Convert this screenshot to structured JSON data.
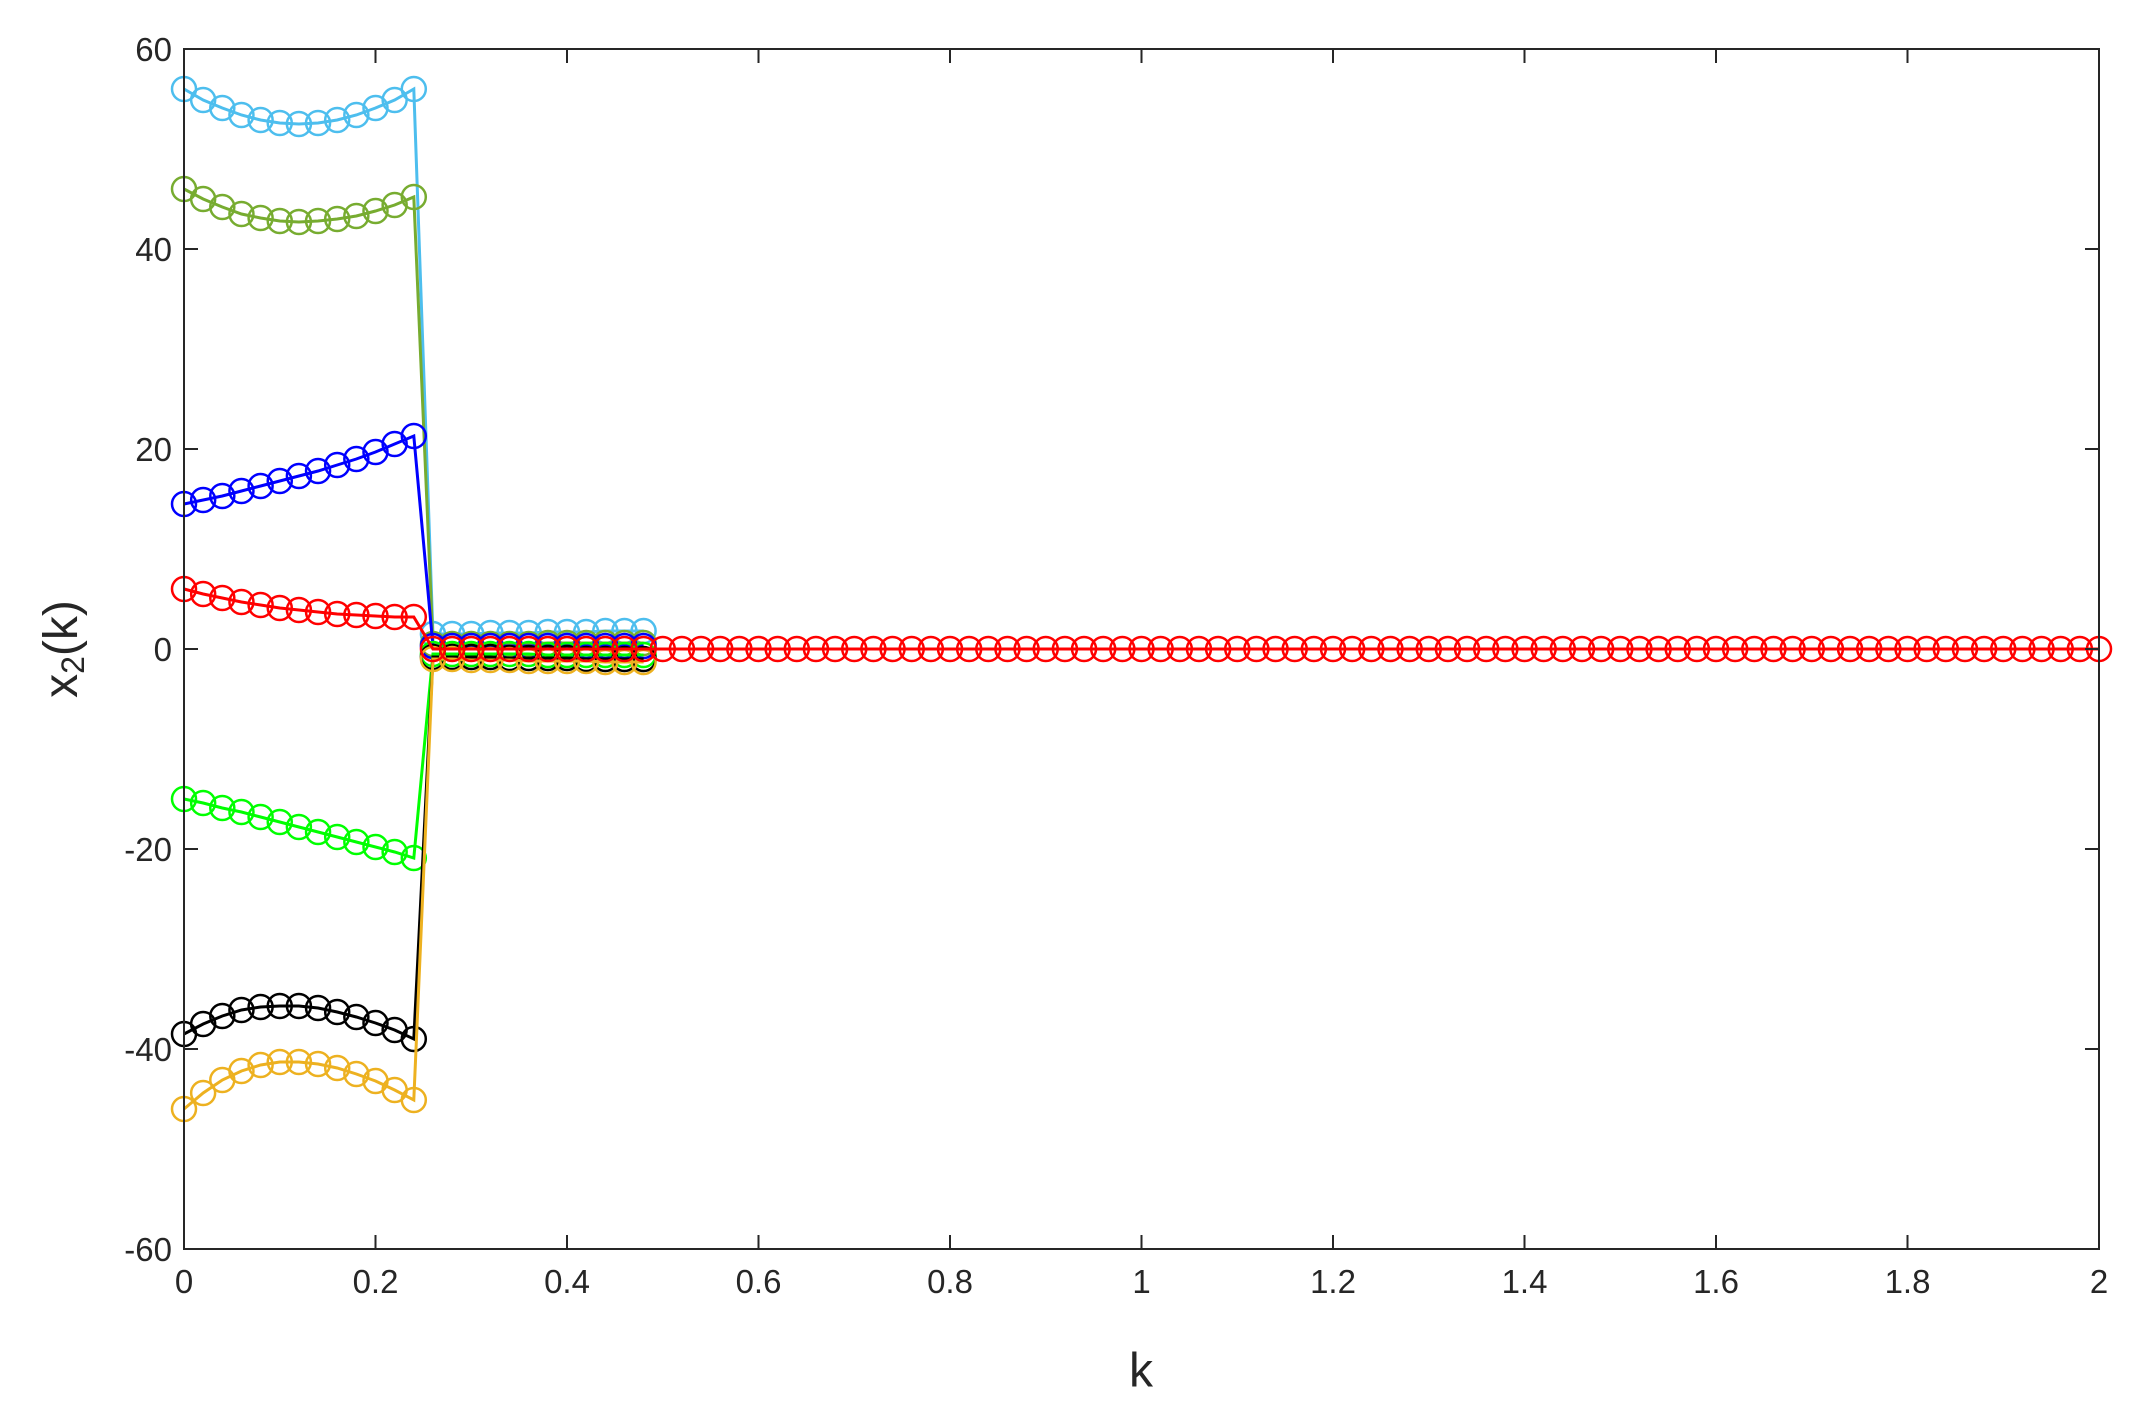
{
  "chart_data": {
    "type": "line",
    "xlabel": "k",
    "ylabel": [
      "x",
      "2",
      "(k)"
    ],
    "xlim": [
      0,
      2
    ],
    "xticks": [
      0,
      0.2,
      0.4,
      0.6,
      0.8,
      1,
      1.2,
      1.4,
      1.6,
      1.8,
      2
    ],
    "ylim": [
      -60,
      60
    ],
    "yticks": [
      -60,
      -40,
      -20,
      0,
      20,
      40,
      60
    ],
    "marker": "circle",
    "series": [
      {
        "color": "#4DBEEE",
        "x": [
          0,
          0.02,
          0.04,
          0.06,
          0.08,
          0.1,
          0.12,
          0.14,
          0.16,
          0.18,
          0.2,
          0.22,
          0.24,
          0.26,
          0.28,
          0.3,
          0.32,
          0.34,
          0.36,
          0.38,
          0.4,
          0.42,
          0.44,
          0.46,
          0.48
        ],
        "values": [
          56,
          54.9,
          54.1,
          53.4,
          52.9,
          52.6,
          52.5,
          52.6,
          52.9,
          53.4,
          54.1,
          54.9,
          56,
          1.5,
          1.5,
          1.5,
          1.6,
          1.6,
          1.6,
          1.7,
          1.7,
          1.7,
          1.8,
          1.8,
          1.8
        ]
      },
      {
        "color": "#77AC30",
        "x": [
          0,
          0.02,
          0.04,
          0.06,
          0.08,
          0.1,
          0.12,
          0.14,
          0.16,
          0.18,
          0.2,
          0.22,
          0.24,
          0.26,
          0.28,
          0.3,
          0.32,
          0.34,
          0.36,
          0.38,
          0.4,
          0.42,
          0.44,
          0.46,
          0.48
        ],
        "values": [
          46,
          45,
          44.2,
          43.5,
          43.1,
          42.8,
          42.7,
          42.8,
          43,
          43.3,
          43.8,
          44.4,
          45.2,
          0.5,
          0.5,
          0.5,
          0.5,
          0.5,
          0.5,
          0.6,
          0.6,
          0.6,
          0.6,
          0.6,
          0.6
        ]
      },
      {
        "color": "#0000FF",
        "x": [
          0,
          0.02,
          0.04,
          0.06,
          0.08,
          0.1,
          0.12,
          0.14,
          0.16,
          0.18,
          0.2,
          0.22,
          0.24,
          0.26,
          0.28,
          0.3,
          0.32,
          0.34,
          0.36,
          0.38,
          0.4,
          0.42,
          0.44,
          0.46,
          0.48
        ],
        "values": [
          14.5,
          14.9,
          15.3,
          15.8,
          16.3,
          16.8,
          17.3,
          17.8,
          18.4,
          19,
          19.7,
          20.5,
          21.3,
          0.3,
          0.3,
          0.3,
          0.3,
          0.3,
          0.3,
          0.3,
          0.3,
          0.3,
          0.3,
          0.3,
          0.3
        ]
      },
      {
        "color": "#00FF00",
        "x": [
          0,
          0.02,
          0.04,
          0.06,
          0.08,
          0.1,
          0.12,
          0.14,
          0.16,
          0.18,
          0.2,
          0.22,
          0.24,
          0.26,
          0.28,
          0.3,
          0.32,
          0.34,
          0.36,
          0.38,
          0.4,
          0.42,
          0.44,
          0.46,
          0.48
        ],
        "values": [
          -15,
          -15.4,
          -15.9,
          -16.3,
          -16.8,
          -17.3,
          -17.8,
          -18.3,
          -18.8,
          -19.3,
          -19.8,
          -20.3,
          -20.9,
          -0.5,
          -0.5,
          -0.5,
          -0.5,
          -0.5,
          -0.5,
          -0.6,
          -0.6,
          -0.6,
          -0.6,
          -0.6,
          -0.6
        ]
      },
      {
        "color": "#000000",
        "x": [
          0,
          0.02,
          0.04,
          0.06,
          0.08,
          0.1,
          0.12,
          0.14,
          0.16,
          0.18,
          0.2,
          0.22,
          0.24,
          0.26,
          0.28,
          0.3,
          0.32,
          0.34,
          0.36,
          0.38,
          0.4,
          0.42,
          0.44,
          0.46,
          0.48
        ],
        "values": [
          -38.5,
          -37.5,
          -36.7,
          -36.1,
          -35.8,
          -35.7,
          -35.7,
          -35.9,
          -36.3,
          -36.8,
          -37.4,
          -38.1,
          -39,
          -0.8,
          -0.8,
          -0.8,
          -0.8,
          -0.9,
          -0.9,
          -0.9,
          -0.9,
          -1,
          -1,
          -1,
          -1
        ]
      },
      {
        "color": "#EDB120",
        "x": [
          0,
          0.02,
          0.04,
          0.06,
          0.08,
          0.1,
          0.12,
          0.14,
          0.16,
          0.18,
          0.2,
          0.22,
          0.24,
          0.26,
          0.28,
          0.3,
          0.32,
          0.34,
          0.36,
          0.38,
          0.4,
          0.42,
          0.44,
          0.46,
          0.48
        ],
        "values": [
          -46,
          -44.4,
          -43.1,
          -42.2,
          -41.6,
          -41.3,
          -41.3,
          -41.5,
          -41.9,
          -42.5,
          -43.2,
          -44.1,
          -45.1,
          -1,
          -1,
          -1.1,
          -1.1,
          -1.1,
          -1.2,
          -1.2,
          -1.2,
          -1.2,
          -1.3,
          -1.3,
          -1.3
        ]
      },
      {
        "color": "#FF0000",
        "x": [
          0,
          0.02,
          0.04,
          0.06,
          0.08,
          0.1,
          0.12,
          0.14,
          0.16,
          0.18,
          0.2,
          0.22,
          0.24,
          0.26,
          0.28,
          0.3,
          0.32,
          0.34,
          0.36,
          0.38,
          0.4,
          0.42,
          0.44,
          0.46,
          0.48,
          0.5,
          0.52,
          0.54,
          0.56,
          0.58,
          0.6,
          0.62,
          0.64,
          0.66,
          0.68,
          0.7,
          0.72,
          0.74,
          0.76,
          0.78,
          0.8,
          0.82,
          0.84,
          0.86,
          0.88,
          0.9,
          0.92,
          0.94,
          0.96,
          0.98,
          1,
          1.02,
          1.04,
          1.06,
          1.08,
          1.1,
          1.12,
          1.14,
          1.16,
          1.18,
          1.2,
          1.22,
          1.24,
          1.26,
          1.28,
          1.3,
          1.32,
          1.34,
          1.36,
          1.38,
          1.4,
          1.42,
          1.44,
          1.46,
          1.48,
          1.5,
          1.52,
          1.54,
          1.56,
          1.58,
          1.6,
          1.62,
          1.64,
          1.66,
          1.68,
          1.7,
          1.72,
          1.74,
          1.76,
          1.78,
          1.8,
          1.82,
          1.84,
          1.86,
          1.88,
          1.9,
          1.92,
          1.94,
          1.96,
          1.98,
          2
        ],
        "values": [
          6,
          5.5,
          5.1,
          4.7,
          4.4,
          4.1,
          3.9,
          3.7,
          3.5,
          3.4,
          3.3,
          3.2,
          3.2,
          0,
          0,
          0,
          0,
          0,
          0,
          0,
          0,
          0,
          0,
          0,
          0,
          0,
          0,
          0,
          0,
          0,
          0,
          0,
          0,
          0,
          0,
          0,
          0,
          0,
          0,
          0,
          0,
          0,
          0,
          0,
          0,
          0,
          0,
          0,
          0,
          0,
          0,
          0,
          0,
          0,
          0,
          0,
          0,
          0,
          0,
          0,
          0,
          0,
          0,
          0,
          0,
          0,
          0,
          0,
          0,
          0,
          0,
          0,
          0,
          0,
          0,
          0,
          0,
          0,
          0,
          0,
          0,
          0,
          0,
          0,
          0,
          0,
          0,
          0,
          0,
          0,
          0,
          0,
          0,
          0,
          0,
          0,
          0,
          0,
          0,
          0,
          0
        ]
      }
    ]
  }
}
